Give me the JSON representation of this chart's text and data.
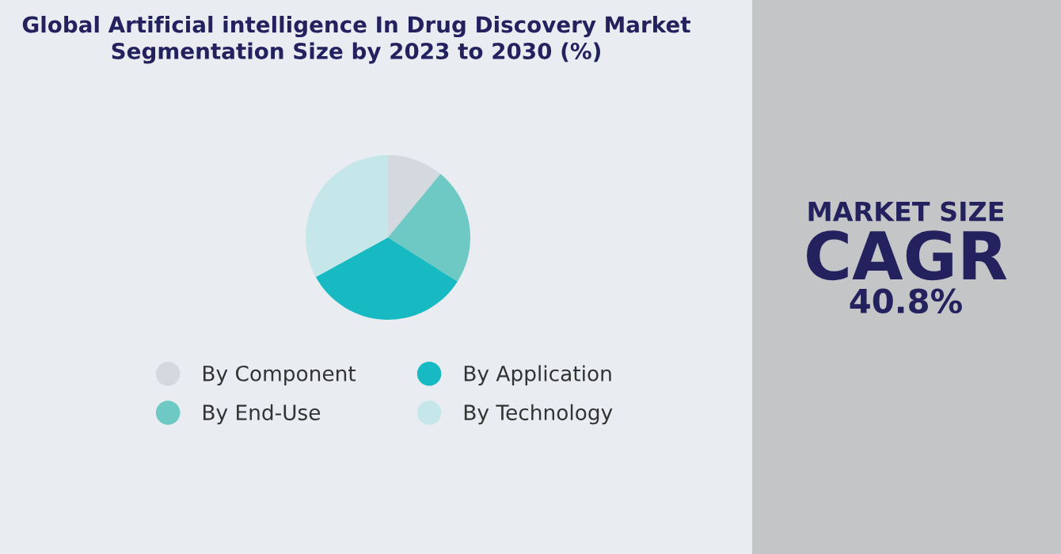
{
  "chart_data": {
    "type": "pie",
    "title": "Global Artificial intelligence In Drug Discovery Market\nSegmentation Size by 2023 to 2030 (%)",
    "categories": [
      "By Component",
      "By End-Use",
      "By Application",
      "By Technology"
    ],
    "values": [
      11,
      23,
      33,
      33
    ],
    "colors": [
      "#d3d9df",
      "#6ec9c4",
      "#17b9c2",
      "#c5e7ea"
    ],
    "legend": "bottom",
    "annotations": [
      "MARKET SIZE",
      "CAGR",
      "40.8%"
    ]
  }
}
